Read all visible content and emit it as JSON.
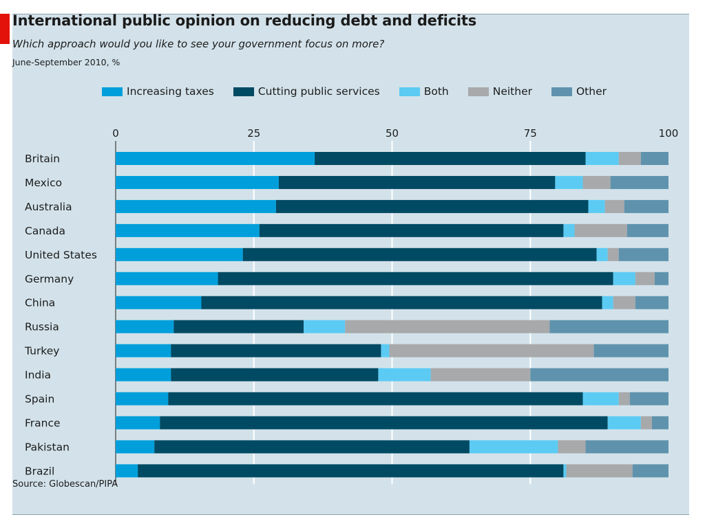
{
  "header": {
    "title": "International public opinion on reducing debt and deficits",
    "subtitle": "Which approach would you like to see your government focus on more?",
    "note": "June-September 2010, %"
  },
  "footer": {
    "source": "Source: Globescan/PIPA"
  },
  "chart_data": {
    "type": "bar",
    "orientation": "horizontal",
    "stacked": true,
    "title": "International public opinion on reducing debt and deficits",
    "subtitle": "Which approach would you like to see your government focus on more?",
    "xlim": [
      0,
      100
    ],
    "xticks": [
      "0",
      "25",
      "50",
      "75",
      "100"
    ],
    "grid": true,
    "legend_position": "top",
    "categories": [
      "Britain",
      "Mexico",
      "Australia",
      "Canada",
      "United States",
      "Germany",
      "China",
      "Russia",
      "Turkey",
      "India",
      "Spain",
      "France",
      "Pakistan",
      "Brazil"
    ],
    "series": [
      {
        "name": "Increasing taxes",
        "color": "#009fdb",
        "values": [
          36,
          29.5,
          29,
          26,
          23,
          18.5,
          15.5,
          10.5,
          10,
          10,
          9.5,
          8,
          7,
          4
        ]
      },
      {
        "name": "Cutting public services",
        "color": "#004a63",
        "values": [
          49,
          50,
          56.5,
          55,
          64,
          71.5,
          72.5,
          23.5,
          38,
          37.5,
          75,
          81,
          57,
          77
        ]
      },
      {
        "name": "Both",
        "color": "#5ccbf4",
        "values": [
          6,
          5,
          3,
          2,
          2,
          4,
          2,
          7.5,
          1.5,
          9.5,
          6.5,
          6,
          16,
          0.5
        ]
      },
      {
        "name": "Neither",
        "color": "#a7a9ab",
        "values": [
          4,
          5,
          3.5,
          9.5,
          2,
          3.5,
          4,
          37,
          37,
          18,
          2,
          2,
          5,
          12
        ]
      },
      {
        "name": "Other",
        "color": "#5f93ad",
        "values": [
          5,
          10.5,
          8,
          7.5,
          9,
          2.5,
          6,
          21.5,
          13.5,
          25,
          7,
          3,
          15,
          6.5
        ]
      }
    ]
  }
}
